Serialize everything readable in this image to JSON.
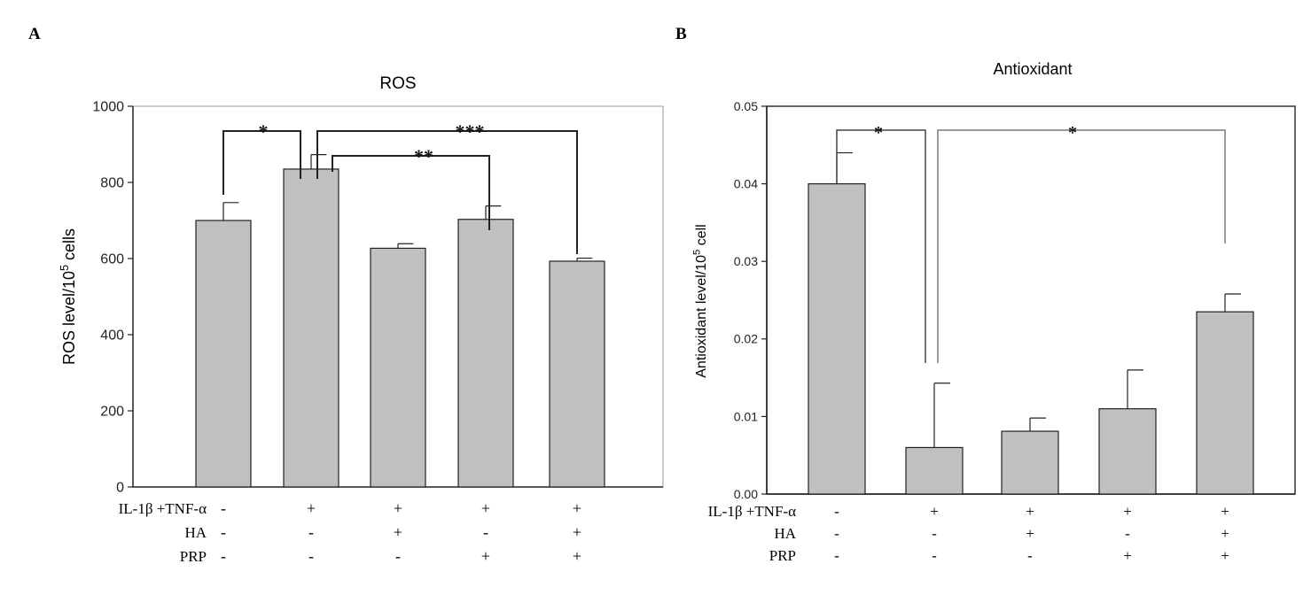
{
  "panel_a_letter": "A",
  "panel_b_letter": "B",
  "row_labels": [
    "IL-1β +TNF-α",
    "HA",
    "PRP"
  ],
  "colors": {
    "bar_fill": "#c0c0c0",
    "bar_stroke": "#222222",
    "axis": "#222222",
    "bracket_gray": "#7a7a7a"
  },
  "chart_data": [
    {
      "type": "bar",
      "title": "ROS",
      "ylabel_main": "ROS level/10",
      "ylabel_sup": "5",
      "ylabel_tail": " cells",
      "ylim": [
        0,
        1000
      ],
      "yticks": [
        "0",
        "200",
        "400",
        "600",
        "800",
        "1000"
      ],
      "ytick_values": [
        0,
        200,
        400,
        600,
        800,
        1000
      ],
      "values": [
        700,
        835,
        627,
        703,
        593
      ],
      "errors": [
        47,
        38,
        12,
        35,
        8
      ],
      "conditions": [
        [
          "-",
          "-",
          "-"
        ],
        [
          "+",
          "-",
          "-"
        ],
        [
          "+",
          "+",
          "-"
        ],
        [
          "+",
          "-",
          "+"
        ],
        [
          "+",
          "+",
          "+"
        ]
      ],
      "significance": [
        {
          "from": 0,
          "to": 1,
          "label": "*"
        },
        {
          "from": 1,
          "to": 4,
          "label": "***"
        },
        {
          "from": 1,
          "to": 3,
          "label": "**"
        }
      ],
      "grid": false
    },
    {
      "type": "bar",
      "title": "Antioxidant",
      "ylabel_main": "Antioxidant level/10",
      "ylabel_sup": "5",
      "ylabel_tail": " cell",
      "ylim": [
        0,
        0.05
      ],
      "yticks": [
        "0.00",
        "0.01",
        "0.02",
        "0.03",
        "0.04",
        "0.05"
      ],
      "ytick_values": [
        0,
        0.01,
        0.02,
        0.03,
        0.04,
        0.05
      ],
      "values": [
        0.04,
        0.006,
        0.0081,
        0.011,
        0.0235
      ],
      "errors": [
        0.004,
        0.0083,
        0.0017,
        0.005,
        0.0023
      ],
      "conditions": [
        [
          "-",
          "-",
          "-"
        ],
        [
          "+",
          "-",
          "-"
        ],
        [
          "+",
          "+",
          "-"
        ],
        [
          "+",
          "-",
          "+"
        ],
        [
          "+",
          "+",
          "+"
        ]
      ],
      "significance": [
        {
          "from": 0,
          "to": 1,
          "label": "*"
        },
        {
          "from": 1,
          "to": 4,
          "label": "*"
        }
      ],
      "grid": false
    }
  ]
}
